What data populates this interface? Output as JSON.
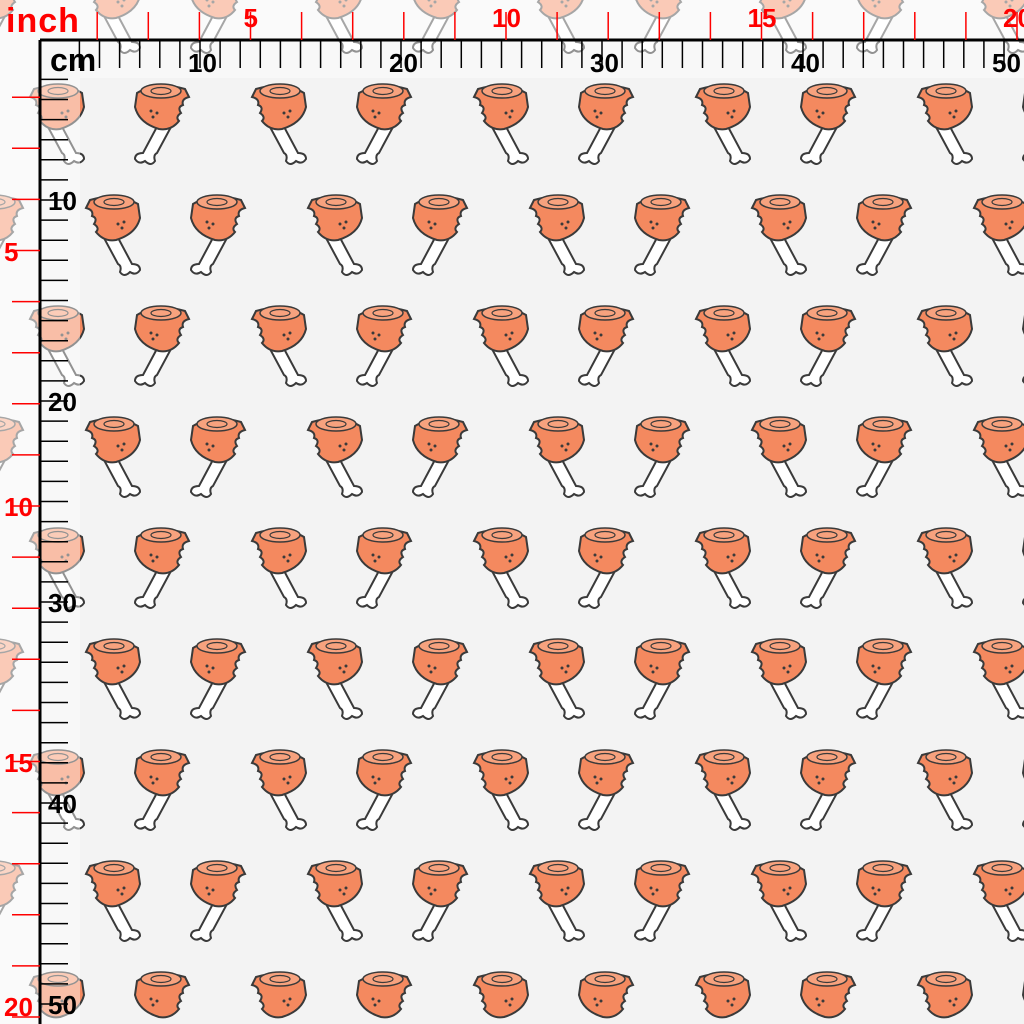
{
  "rulers": {
    "inch_unit": "inch",
    "cm_unit": "cm",
    "inch_labels_top": [
      "5",
      "10",
      "15",
      "20"
    ],
    "inch_labels_left": [
      "5",
      "10",
      "15",
      "20"
    ],
    "cm_labels_top": [
      "10",
      "20",
      "30",
      "40",
      "50"
    ],
    "cm_labels_left": [
      "10",
      "20",
      "30",
      "40",
      "50"
    ],
    "inch_color": "#ff0000",
    "cm_color": "#000000"
  },
  "pattern": {
    "motif": "drumstick-icon",
    "meat_color": "#f4895f",
    "outline_color": "#3a3a3a",
    "bone_color": "#ffffff",
    "background_color": "#f3f3f3"
  }
}
